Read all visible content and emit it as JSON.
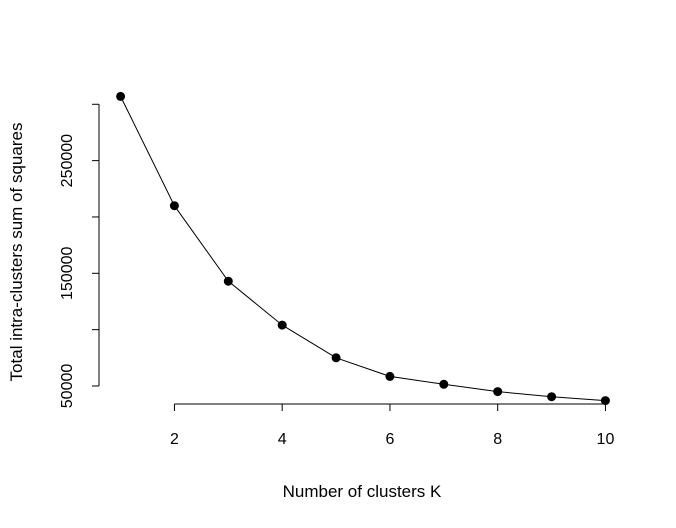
{
  "chart_data": {
    "type": "line",
    "title": "",
    "xlabel": "Number of clusters K",
    "ylabel": "Total intra-clusters sum of squares",
    "x": [
      1,
      2,
      3,
      4,
      5,
      6,
      7,
      8,
      9,
      10
    ],
    "series": [
      {
        "values": [
          307000,
          210000,
          143000,
          104000,
          75000,
          58500,
          51500,
          45000,
          40500,
          37000
        ],
        "marker": "filled-circle",
        "line_style": "solid",
        "color": "#000000"
      }
    ],
    "x_ticks": [
      2,
      4,
      6,
      8,
      10
    ],
    "y_ticks": [
      50000,
      100000,
      150000,
      200000,
      250000,
      300000
    ],
    "y_tick_labels": [
      "50000",
      "",
      "150000",
      "",
      "250000",
      ""
    ],
    "xlim": [
      0.6,
      10.4
    ],
    "ylim": [
      34000,
      318000
    ],
    "grid": false,
    "legend": "none"
  }
}
